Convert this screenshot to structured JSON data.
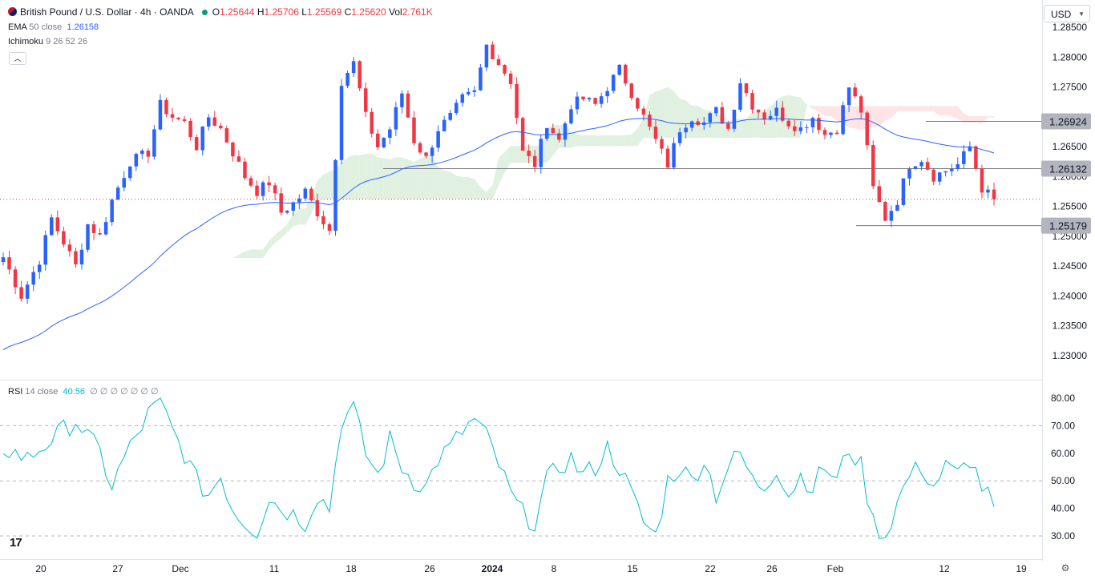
{
  "header": {
    "symbol": "British Pound / U.S. Dollar · 4h · OANDA",
    "ohlc": [
      {
        "k": "O",
        "v": "1.25644"
      },
      {
        "k": "H",
        "v": "1.25706"
      },
      {
        "k": "L",
        "v": "1.25569"
      },
      {
        "k": "C",
        "v": "1.25620"
      },
      {
        "k": "Vol",
        "v": "2.761K"
      }
    ],
    "currency": "USD",
    "collapse_icon": "chevron-up-icon"
  },
  "indicators": {
    "ema_name": "EMA",
    "ema_params": "50 close",
    "ema_value": "1.26158",
    "ichimoku_name": "Ichimoku",
    "ichimoku_params": "9 26 52 26",
    "rsi_name": "RSI",
    "rsi_params": "14 close",
    "rsi_value": "40.56",
    "rsi_na": "∅ ∅ ∅ ∅ ∅ ∅ ∅"
  },
  "colors": {
    "up": "#089981",
    "up_body": "#2962ff",
    "down": "#f23645",
    "ema": "#2962ff",
    "rsi": "#00bcd4",
    "cloud_bull": "#c8e6c9",
    "cloud_bear": "#ffcdd2",
    "level_line": "#787b86"
  },
  "chart_data": [
    {
      "type": "candlestick",
      "title": "British Pound / U.S. Dollar · 4h · OANDA",
      "y_ticks": [
        "1.28500",
        "1.28000",
        "1.27500",
        "1.27000",
        "1.26500",
        "1.26000",
        "1.25500",
        "1.25000",
        "1.24500",
        "1.24000",
        "1.23500",
        "1.23000"
      ],
      "ylim": [
        1.226,
        1.2875
      ],
      "x_ticks": [
        "20",
        "27",
        "Dec",
        "11",
        "18",
        "26",
        "2024",
        "8",
        "15",
        "22",
        "26",
        "Feb",
        "12",
        "19"
      ],
      "price_labels": [
        "1.26924",
        "1.26132",
        "1.25179"
      ],
      "current_price": 1.2562,
      "price_path": [
        [
          0,
          1.2465
        ],
        [
          3,
          1.24
        ],
        [
          6,
          1.246
        ],
        [
          8,
          1.253
        ],
        [
          10,
          1.249
        ],
        [
          12,
          1.245
        ],
        [
          14,
          1.252
        ],
        [
          16,
          1.25
        ],
        [
          18,
          1.256
        ],
        [
          21,
          1.2625
        ],
        [
          24,
          1.264
        ],
        [
          26,
          1.272
        ],
        [
          28,
          1.27
        ],
        [
          30,
          1.269
        ],
        [
          32,
          1.265
        ],
        [
          34,
          1.27
        ],
        [
          36,
          1.268
        ],
        [
          38,
          1.264
        ],
        [
          40,
          1.26
        ],
        [
          42,
          1.2575
        ],
        [
          44,
          1.259
        ],
        [
          46,
          1.254
        ],
        [
          48,
          1.2555
        ],
        [
          50,
          1.2575
        ],
        [
          52,
          1.254
        ],
        [
          54,
          1.251
        ],
        [
          56,
          1.276
        ],
        [
          58,
          1.279
        ],
        [
          60,
          1.27
        ],
        [
          62,
          1.265
        ],
        [
          64,
          1.268
        ],
        [
          66,
          1.274
        ],
        [
          68,
          1.266
        ],
        [
          70,
          1.263
        ],
        [
          72,
          1.268
        ],
        [
          74,
          1.27
        ],
        [
          76,
          1.273
        ],
        [
          78,
          1.274
        ],
        [
          80,
          1.282
        ],
        [
          82,
          1.279
        ],
        [
          84,
          1.276
        ],
        [
          86,
          1.264
        ],
        [
          88,
          1.262
        ],
        [
          90,
          1.269
        ],
        [
          92,
          1.266
        ],
        [
          94,
          1.272
        ],
        [
          96,
          1.273
        ],
        [
          98,
          1.272
        ],
        [
          100,
          1.275
        ],
        [
          102,
          1.278
        ],
        [
          104,
          1.274
        ],
        [
          106,
          1.27
        ],
        [
          108,
          1.266
        ],
        [
          110,
          1.262
        ],
        [
          112,
          1.268
        ],
        [
          114,
          1.27
        ],
        [
          116,
          1.269
        ],
        [
          118,
          1.271
        ],
        [
          120,
          1.268
        ],
        [
          122,
          1.276
        ],
        [
          124,
          1.272
        ],
        [
          126,
          1.27
        ],
        [
          128,
          1.271
        ],
        [
          130,
          1.269
        ],
        [
          132,
          1.268
        ],
        [
          134,
          1.27
        ],
        [
          136,
          1.267
        ],
        [
          138,
          1.268
        ],
        [
          140,
          1.275
        ],
        [
          142,
          1.271
        ],
        [
          144,
          1.258
        ],
        [
          146,
          1.253
        ],
        [
          148,
          1.256
        ],
        [
          150,
          1.262
        ],
        [
          152,
          1.263
        ],
        [
          154,
          1.26
        ],
        [
          156,
          1.261
        ],
        [
          158,
          1.262
        ],
        [
          160,
          1.265
        ],
        [
          162,
          1.258
        ],
        [
          164,
          1.2562
        ]
      ],
      "ema50_start": 1.231,
      "annotations": [
        "1.26924 resistance",
        "1.26132 support",
        "1.25179 low"
      ]
    },
    {
      "type": "line",
      "title": "RSI",
      "y_ticks": [
        "80.00",
        "70.00",
        "60.00",
        "50.00",
        "40.00",
        "30.00"
      ],
      "ylim": [
        26,
        82
      ],
      "reference_lines": [
        70,
        50,
        30
      ],
      "last_value": 40.56,
      "values_path": [
        [
          0,
          62
        ],
        [
          4,
          58
        ],
        [
          8,
          65
        ],
        [
          12,
          72
        ],
        [
          16,
          60
        ],
        [
          18,
          48
        ],
        [
          20,
          58
        ],
        [
          24,
          74
        ],
        [
          26,
          79
        ],
        [
          28,
          68
        ],
        [
          30,
          60
        ],
        [
          32,
          50
        ],
        [
          34,
          45
        ],
        [
          36,
          52
        ],
        [
          38,
          40
        ],
        [
          40,
          35
        ],
        [
          42,
          32
        ],
        [
          44,
          44
        ],
        [
          46,
          40
        ],
        [
          48,
          38
        ],
        [
          50,
          35
        ],
        [
          52,
          45
        ],
        [
          54,
          40
        ],
        [
          56,
          72
        ],
        [
          58,
          76
        ],
        [
          60,
          60
        ],
        [
          62,
          52
        ],
        [
          64,
          65
        ],
        [
          66,
          55
        ],
        [
          68,
          50
        ],
        [
          70,
          48
        ],
        [
          72,
          58
        ],
        [
          74,
          62
        ],
        [
          76,
          68
        ],
        [
          78,
          72
        ],
        [
          80,
          66
        ],
        [
          82,
          56
        ],
        [
          84,
          45
        ],
        [
          86,
          38
        ],
        [
          88,
          35
        ],
        [
          90,
          50
        ],
        [
          92,
          55
        ],
        [
          94,
          58
        ],
        [
          96,
          52
        ],
        [
          98,
          55
        ],
        [
          100,
          62
        ],
        [
          102,
          55
        ],
        [
          104,
          45
        ],
        [
          106,
          35
        ],
        [
          108,
          30
        ],
        [
          110,
          50
        ],
        [
          112,
          55
        ],
        [
          114,
          50
        ],
        [
          116,
          58
        ],
        [
          118,
          45
        ],
        [
          120,
          55
        ],
        [
          122,
          60
        ],
        [
          124,
          50
        ],
        [
          126,
          48
        ],
        [
          128,
          55
        ],
        [
          130,
          45
        ],
        [
          132,
          52
        ],
        [
          134,
          48
        ],
        [
          136,
          55
        ],
        [
          138,
          50
        ],
        [
          140,
          62
        ],
        [
          142,
          55
        ],
        [
          144,
          35
        ],
        [
          146,
          30
        ],
        [
          148,
          42
        ],
        [
          150,
          52
        ],
        [
          152,
          55
        ],
        [
          154,
          48
        ],
        [
          156,
          55
        ],
        [
          158,
          52
        ],
        [
          160,
          58
        ],
        [
          162,
          48
        ],
        [
          164,
          40.56
        ]
      ]
    }
  ]
}
